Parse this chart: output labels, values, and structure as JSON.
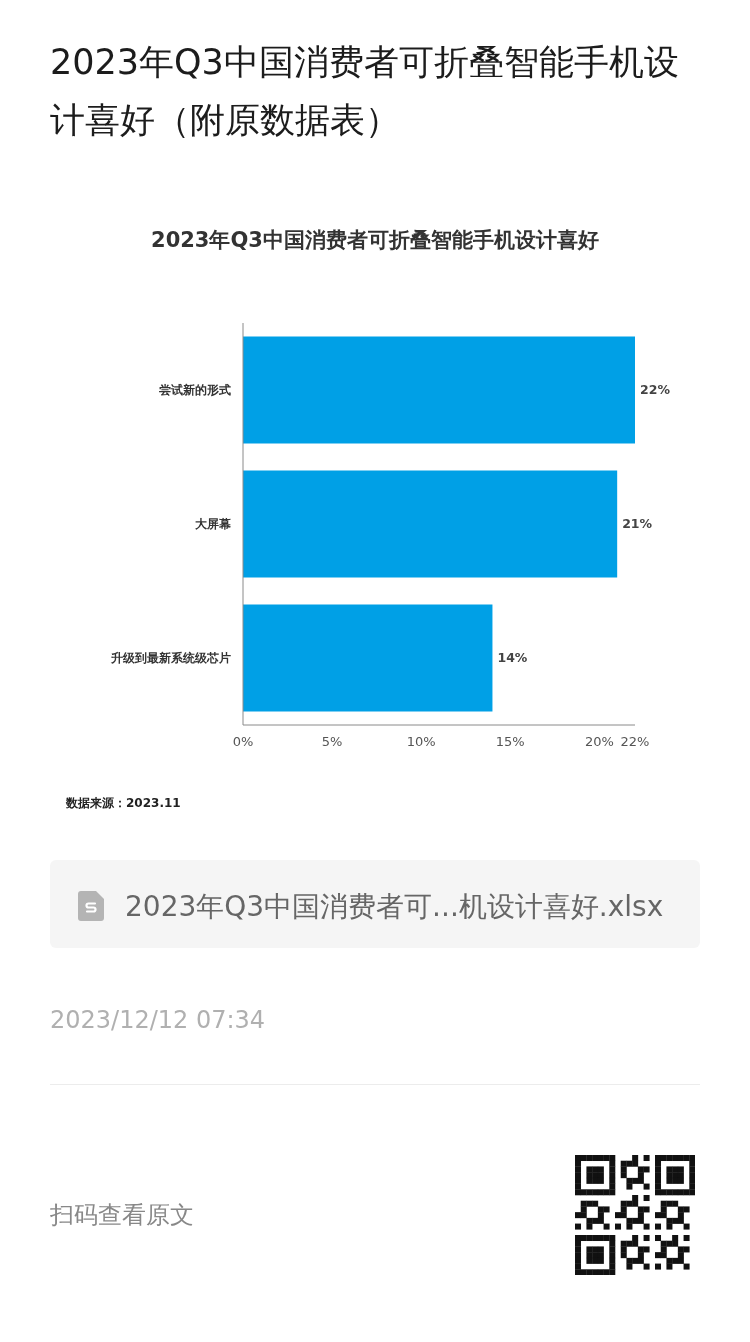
{
  "chart_data": {
    "type": "bar",
    "orientation": "horizontal",
    "title": "2023年Q3中国消费者可折叠智能手机设计喜好（附原数据表）",
    "subtitle": "2023年Q3中国消费者可折叠智能手机设计喜好",
    "categories": [
      "尝试新的形式",
      "大屏幕",
      "升级到最新系统级芯片"
    ],
    "values": [
      22,
      21,
      14
    ],
    "value_labels": [
      "22%",
      "21%",
      "14%"
    ],
    "color": "#00a0e6",
    "xlim": [
      0,
      22
    ],
    "xticks": [
      {
        "value": 0,
        "label": "0%"
      },
      {
        "value": 5,
        "label": "5%"
      },
      {
        "value": 10,
        "label": "10%"
      },
      {
        "value": 15,
        "label": "15%"
      },
      {
        "value": 20,
        "label": "20%"
      },
      {
        "value": 22,
        "label": "22%"
      }
    ],
    "annotations": [
      "数据来源：2023.11",
      "2023年Q3中国消费者可...机设计喜好.xlsx",
      "2023/12/12 07:34",
      "扫码查看原文"
    ]
  }
}
